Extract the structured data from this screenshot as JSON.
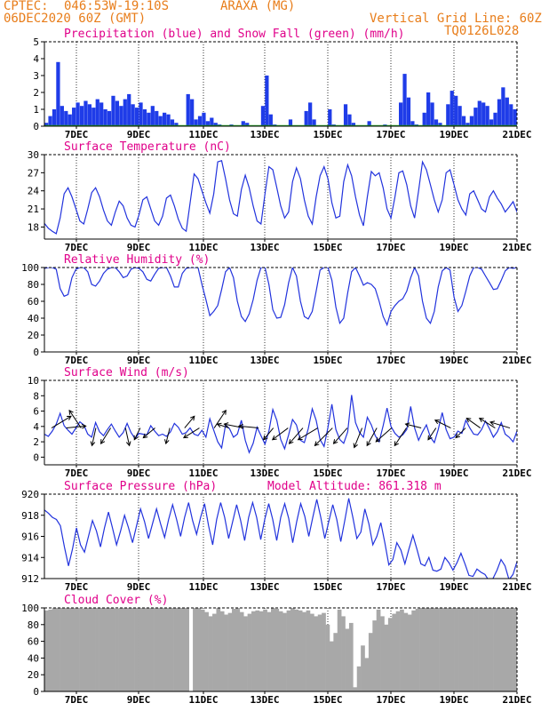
{
  "header": {
    "source": "CPTEC:",
    "coords": "046:53W-19:10S",
    "station": "ARAXA (MG)",
    "init_time": "06DEC2020 60Z (GMT)",
    "grid_note": "Vertical Grid Line: 60Z",
    "model_code": "TQ0126L028"
  },
  "colors": {
    "header": "#e87d1a",
    "panel_title": "#e0008a",
    "series_line": "#2233dd",
    "precip_bar": "#1f3ce8",
    "snow_line": "#22aa22",
    "wind_arrow": "#000000",
    "cloud_fill": "#a8a8a8"
  },
  "chart_data": [
    {
      "type": "bar",
      "title": "Precipitation (blue) and Snow Fall (green) (mm/h)",
      "x_tick_labels": [
        "7DEC",
        "9DEC",
        "11DEC",
        "13DEC",
        "15DEC",
        "17DEC",
        "19DEC",
        "21DEC"
      ],
      "ylim": [
        0,
        5
      ],
      "yticks": [
        0,
        1,
        2,
        3,
        4,
        5
      ],
      "series": [
        {
          "values": [
            0.2,
            0.6,
            1.0,
            3.8,
            1.2,
            0.9,
            0.7,
            1.1,
            1.4,
            1.2,
            1.5,
            1.3,
            1.1,
            1.6,
            1.4,
            1.0,
            0.9,
            1.8,
            1.5,
            1.2,
            1.6,
            1.9,
            1.3,
            1.1,
            1.4,
            1.0,
            0.8,
            1.2,
            0.9,
            0.6,
            0.8,
            0.7,
            0.4,
            0.2,
            0.0,
            0.0,
            1.9,
            1.6,
            0.4,
            0.6,
            0.8,
            0.3,
            0.5,
            0.2,
            0.1,
            0.0,
            0.0,
            0.1,
            0.0,
            0.0,
            0.3,
            0.2,
            0.0,
            0.0,
            0.0,
            1.2,
            3.0,
            0.7,
            0.1,
            0.0,
            0.0,
            0.0,
            0.4,
            0.0,
            0.0,
            0.0,
            0.9,
            1.4,
            0.4,
            0.0,
            0.0,
            0.0,
            1.0,
            0.1,
            0.0,
            0.0,
            1.3,
            0.7,
            0.2,
            0.0,
            0.0,
            0.0,
            0.3,
            0.0,
            0.0,
            0.0,
            0.1,
            0.0,
            0.0,
            0.0,
            1.4,
            3.1,
            1.7,
            0.3,
            0.1,
            0.0,
            0.8,
            2.0,
            1.4,
            0.4,
            0.2,
            0.0,
            1.3,
            2.1,
            1.8,
            1.2,
            0.6,
            0.2,
            0.6,
            1.1,
            1.5,
            1.4,
            1.2,
            0.4,
            0.8,
            1.6,
            2.3,
            1.7,
            1.3,
            1.0
          ]
        },
        {
          "values": [
            0
          ]
        }
      ]
    },
    {
      "type": "line",
      "title": "Surface Temperature (nC)",
      "x_tick_labels": [
        "7DEC",
        "9DEC",
        "11DEC",
        "13DEC",
        "15DEC",
        "17DEC",
        "19DEC",
        "21DEC"
      ],
      "ylim": [
        16,
        30
      ],
      "yticks": [
        18,
        21,
        24,
        27,
        30
      ],
      "series": [
        {
          "values": [
            18.6,
            17.8,
            17.3,
            16.9,
            19.5,
            23.5,
            24.5,
            23.0,
            21.0,
            19.0,
            18.5,
            21.0,
            23.7,
            24.5,
            23.0,
            20.8,
            19.0,
            18.3,
            20.5,
            22.3,
            21.5,
            19.5,
            18.3,
            18.0,
            20.0,
            22.5,
            23.0,
            21.0,
            19.0,
            18.3,
            19.8,
            22.8,
            23.3,
            21.5,
            19.3,
            17.8,
            17.3,
            22.0,
            26.8,
            26.0,
            24.0,
            22.0,
            20.3,
            23.5,
            28.8,
            29.0,
            26.0,
            22.5,
            20.2,
            19.8,
            24.2,
            26.6,
            24.5,
            21.5,
            19.0,
            18.5,
            23.5,
            28.0,
            27.5,
            24.5,
            21.5,
            19.5,
            20.5,
            25.5,
            27.8,
            26.0,
            22.5,
            19.8,
            18.5,
            23.0,
            26.5,
            28.0,
            26.0,
            22.0,
            19.5,
            19.8,
            25.5,
            28.3,
            26.5,
            23.0,
            20.0,
            18.2,
            23.0,
            27.2,
            26.5,
            27.0,
            24.5,
            21.0,
            19.5,
            23.0,
            27.0,
            27.3,
            25.0,
            21.5,
            19.5,
            24.0,
            28.8,
            27.5,
            25.0,
            22.5,
            20.5,
            22.5,
            27.0,
            27.5,
            25.0,
            22.5,
            21.0,
            20.0,
            23.5,
            24.0,
            22.5,
            21.0,
            20.5,
            23.0,
            24.0,
            22.8,
            21.8,
            20.5,
            21.3,
            22.2,
            20.5
          ]
        }
      ]
    },
    {
      "type": "line",
      "title": "Relative Humidity (%)",
      "x_tick_labels": [
        "7DEC",
        "9DEC",
        "11DEC",
        "13DEC",
        "15DEC",
        "17DEC",
        "19DEC",
        "21DEC"
      ],
      "ylim": [
        0,
        100
      ],
      "yticks": [
        0,
        20,
        40,
        60,
        80,
        100
      ],
      "series": [
        {
          "values": [
            99,
            100,
            100,
            98,
            75,
            66,
            68,
            88,
            98,
            100,
            100,
            95,
            80,
            78,
            84,
            93,
            98,
            100,
            100,
            95,
            88,
            90,
            98,
            100,
            99,
            95,
            86,
            84,
            92,
            99,
            100,
            100,
            90,
            77,
            77,
            93,
            99,
            100,
            100,
            100,
            80,
            62,
            43,
            48,
            55,
            74,
            95,
            100,
            88,
            60,
            42,
            36,
            45,
            62,
            85,
            100,
            100,
            80,
            50,
            40,
            41,
            56,
            82,
            100,
            90,
            60,
            42,
            39,
            48,
            72,
            97,
            100,
            100,
            85,
            53,
            34,
            40,
            70,
            95,
            100,
            90,
            79,
            82,
            80,
            75,
            60,
            42,
            32,
            48,
            55,
            60,
            63,
            72,
            88,
            100,
            90,
            60,
            40,
            34,
            48,
            77,
            96,
            100,
            97,
            65,
            48,
            55,
            72,
            90,
            100,
            100,
            98,
            90,
            82,
            74,
            75,
            85,
            96,
            100,
            99,
            100
          ]
        }
      ]
    },
    {
      "type": "line",
      "title": "Surface Wind (m/s)",
      "x_tick_labels": [
        "7DEC",
        "9DEC",
        "11DEC",
        "13DEC",
        "15DEC",
        "17DEC",
        "19DEC",
        "21DEC"
      ],
      "ylim": [
        -1,
        10
      ],
      "yticks": [
        0,
        2,
        4,
        6,
        8,
        10
      ],
      "series": [
        {
          "values": [
            3.0,
            2.7,
            3.4,
            4.3,
            5.7,
            4.1,
            3.5,
            3.0,
            3.8,
            4.6,
            4.2,
            3.0,
            2.6,
            4.5,
            3.3,
            2.8,
            3.6,
            4.3,
            3.4,
            2.6,
            3.2,
            4.4,
            3.2,
            2.4,
            3.1,
            3.0,
            2.9,
            4.1,
            3.4,
            2.8,
            3.0,
            2.7,
            3.3,
            4.4,
            3.9,
            3.0,
            3.2,
            3.8,
            3.0,
            2.8,
            3.5,
            2.6,
            5.0,
            3.5,
            2.0,
            1.2,
            4.2,
            3.7,
            2.6,
            3.0,
            4.8,
            2.2,
            0.6,
            1.8,
            3.9,
            2.8,
            1.7,
            3.4,
            6.2,
            4.8,
            2.3,
            1.1,
            2.9,
            4.9,
            4.2,
            2.2,
            1.9,
            3.7,
            6.3,
            4.8,
            2.3,
            1.4,
            3.9,
            6.9,
            3.6,
            2.3,
            1.8,
            3.3,
            8.1,
            4.5,
            3.2,
            2.6,
            5.2,
            4.2,
            2.8,
            2.0,
            4.1,
            6.4,
            4.0,
            3.1,
            2.6,
            2.9,
            3.6,
            6.6,
            3.8,
            2.2,
            3.3,
            4.2,
            2.6,
            1.9,
            3.6,
            5.8,
            3.6,
            2.4,
            2.6,
            3.4,
            3.1,
            4.8,
            3.8,
            3.0,
            2.9,
            3.6,
            4.7,
            3.7,
            2.6,
            3.3,
            4.5,
            3.0,
            2.6,
            2.0,
            3.4
          ]
        },
        {
          "name": "wind_vectors",
          "dx": [
            1.0,
            1.0,
            -0.6,
            -0.2,
            -0.5,
            0.2,
            -0.3,
            -0.6,
            -0.2,
            0.5,
            -0.8,
            0.6,
            -0.6,
            -1.0,
            -1.0,
            -0.5,
            -0.8,
            -0.7,
            -1.0,
            -0.9,
            -0.7,
            -0.4,
            -0.5,
            -0.8,
            -0.6,
            -0.8,
            -0.4,
            -0.8,
            -0.5,
            -0.7,
            -0.8,
            -1.0
          ],
          "dy": [
            0.6,
            0.1,
            0.9,
            -0.9,
            -0.8,
            -0.9,
            -0.6,
            -0.5,
            -0.8,
            0.6,
            -0.5,
            0.9,
            0.2,
            0.2,
            0.1,
            -0.6,
            -0.6,
            -0.8,
            -0.6,
            -0.9,
            -0.8,
            -1.0,
            -0.9,
            -0.7,
            -0.9,
            0.2,
            -0.6,
            0.4,
            -0.5,
            0.5,
            0.5,
            0.3
          ]
        }
      ]
    },
    {
      "type": "line",
      "title": "Surface Pressure (hPa)",
      "annotation": "Model Altitude: 861.318 m",
      "x_tick_labels": [
        "7DEC",
        "9DEC",
        "11DEC",
        "13DEC",
        "15DEC",
        "17DEC",
        "19DEC",
        "21DEC"
      ],
      "ylim": [
        912,
        920
      ],
      "yticks": [
        912,
        914,
        916,
        918,
        920
      ],
      "series": [
        {
          "values": [
            918.5,
            918.2,
            917.8,
            917.6,
            917.0,
            915.0,
            913.2,
            914.8,
            916.8,
            915.2,
            914.5,
            916.0,
            917.5,
            916.5,
            915.0,
            916.8,
            918.3,
            916.8,
            915.2,
            916.5,
            918.0,
            916.8,
            915.4,
            917.0,
            918.6,
            917.4,
            915.8,
            917.2,
            918.6,
            917.2,
            915.9,
            917.6,
            919.0,
            917.6,
            916.0,
            917.8,
            919.2,
            917.5,
            916.2,
            917.8,
            919.1,
            917.0,
            915.2,
            917.6,
            919.2,
            917.8,
            915.8,
            917.4,
            919.0,
            917.5,
            915.6,
            917.8,
            919.2,
            917.8,
            915.7,
            917.6,
            919.1,
            917.6,
            915.6,
            917.8,
            919.1,
            917.7,
            915.4,
            917.4,
            919.1,
            917.9,
            916.0,
            917.8,
            919.5,
            917.8,
            915.8,
            917.4,
            919.0,
            917.6,
            915.5,
            917.5,
            919.6,
            917.8,
            915.8,
            916.4,
            918.6,
            917.2,
            915.2,
            916.0,
            917.3,
            915.4,
            913.3,
            913.8,
            915.4,
            914.7,
            913.4,
            914.8,
            916.1,
            914.8,
            913.4,
            913.2,
            914.0,
            912.8,
            912.7,
            912.9,
            914.0,
            913.5,
            912.8,
            913.5,
            914.4,
            913.4,
            912.3,
            912.2,
            912.9,
            912.6,
            912.4,
            911.8,
            912.0,
            912.8,
            913.8,
            913.2,
            911.9,
            912.4,
            913.6
          ]
        }
      ]
    },
    {
      "type": "area",
      "title": "Cloud Cover (%)",
      "x_tick_labels": [
        "7DEC",
        "9DEC",
        "11DEC",
        "13DEC",
        "15DEC",
        "17DEC",
        "19DEC",
        "21DEC"
      ],
      "ylim": [
        0,
        100
      ],
      "yticks": [
        0,
        20,
        40,
        60,
        80,
        100
      ],
      "series": [
        {
          "values": [
            97,
            98,
            100,
            100,
            100,
            100,
            100,
            100,
            100,
            99,
            100,
            100,
            100,
            100,
            100,
            100,
            100,
            100,
            99,
            100,
            100,
            100,
            100,
            100,
            100,
            100,
            100,
            100,
            100,
            100,
            100,
            100,
            100,
            100,
            100,
            100,
            100,
            0,
            100,
            100,
            98,
            95,
            90,
            93,
            100,
            96,
            92,
            94,
            99,
            100,
            95,
            90,
            93,
            96,
            97,
            96,
            98,
            95,
            100,
            99,
            96,
            94,
            97,
            100,
            98,
            97,
            95,
            97,
            93,
            90,
            92,
            94,
            80,
            60,
            70,
            98,
            90,
            75,
            82,
            5,
            30,
            55,
            40,
            70,
            85,
            98,
            90,
            80,
            88,
            93,
            96,
            98,
            94,
            92,
            97,
            99,
            100,
            100,
            100,
            100,
            100,
            100,
            100,
            100,
            100,
            100,
            100,
            100,
            100,
            100,
            100,
            100,
            100,
            100,
            100,
            100,
            100,
            100,
            100,
            100,
            100
          ]
        }
      ]
    }
  ]
}
